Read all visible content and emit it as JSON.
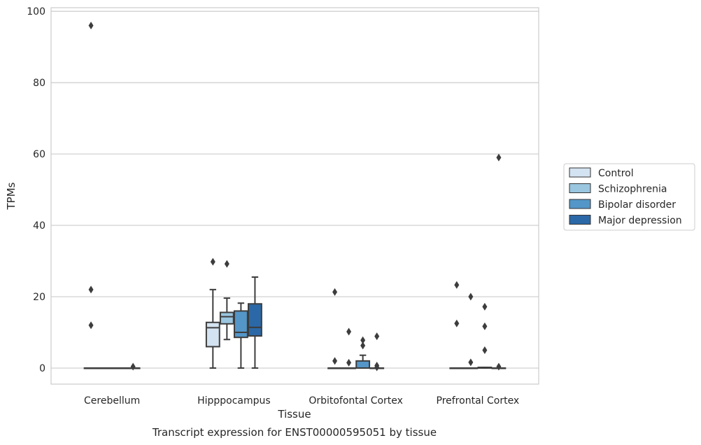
{
  "chart_data": {
    "type": "box",
    "title": "",
    "caption": "Transcript expression for ENST00000595051 by tissue",
    "xlabel": "Tissue",
    "ylabel": "TPMs",
    "ylim": [
      -4.5,
      101
    ],
    "yticks": [
      0,
      20,
      40,
      60,
      80,
      100
    ],
    "grid": "horizontal",
    "legend_position": "right",
    "categories": [
      "Cerebellum",
      "Hipppocampus",
      "Orbitofontal Cortex",
      "Prefrontal Cortex"
    ],
    "series": [
      {
        "name": "Control",
        "color": "#d4e3f1",
        "boxes": [
          {
            "whislo": 0,
            "q1": 0,
            "med": 0,
            "q3": 0,
            "whishi": 0,
            "fliers": [
              96,
              22,
              12
            ]
          },
          {
            "whislo": 0,
            "q1": 6,
            "med": 11.3,
            "q3": 12.8,
            "whishi": 22,
            "fliers": [
              29.8
            ]
          },
          {
            "whislo": 0,
            "q1": 0,
            "med": 0,
            "q3": 0,
            "whishi": 0,
            "fliers": [
              21.3,
              2
            ]
          },
          {
            "whislo": 0,
            "q1": 0,
            "med": 0,
            "q3": 0,
            "whishi": 0,
            "fliers": [
              23.3,
              12.5
            ]
          }
        ]
      },
      {
        "name": "Schizophrenia",
        "color": "#9ac6df",
        "boxes": [
          {
            "whislo": 0,
            "q1": 0,
            "med": 0,
            "q3": 0,
            "whishi": 0,
            "fliers": []
          },
          {
            "whislo": 8,
            "q1": 12.4,
            "med": 14.4,
            "q3": 15.6,
            "whishi": 19.6,
            "fliers": [
              29.2
            ]
          },
          {
            "whislo": 0,
            "q1": 0,
            "med": 0,
            "q3": 0,
            "whishi": 0,
            "fliers": [
              10.2,
              1.5
            ]
          },
          {
            "whislo": 0,
            "q1": 0,
            "med": 0,
            "q3": 0,
            "whishi": 0,
            "fliers": [
              20,
              1.6
            ]
          }
        ]
      },
      {
        "name": "Bipolar disorder",
        "color": "#5496c8",
        "boxes": [
          {
            "whislo": 0,
            "q1": 0,
            "med": 0,
            "q3": 0,
            "whishi": 0,
            "fliers": []
          },
          {
            "whislo": 0,
            "q1": 8.6,
            "med": 10,
            "q3": 16,
            "whishi": 18.2,
            "fliers": []
          },
          {
            "whislo": 0,
            "q1": 0,
            "med": 0,
            "q3": 2,
            "whishi": 3.6,
            "fliers": [
              7.8,
              6.3
            ]
          },
          {
            "whislo": 0,
            "q1": 0,
            "med": 0,
            "q3": 0.2,
            "whishi": 0.2,
            "fliers": [
              17.2,
              11.7,
              5
            ]
          }
        ]
      },
      {
        "name": "Major depression",
        "color": "#2b68a7",
        "boxes": [
          {
            "whislo": 0,
            "q1": 0,
            "med": 0,
            "q3": 0,
            "whishi": 0,
            "fliers": [
              0.4
            ]
          },
          {
            "whislo": 0,
            "q1": 9,
            "med": 11.4,
            "q3": 18,
            "whishi": 25.5,
            "fliers": []
          },
          {
            "whislo": 0,
            "q1": 0,
            "med": 0,
            "q3": 0,
            "whishi": 0,
            "fliers": [
              8.9,
              0.7,
              0.2
            ]
          },
          {
            "whislo": 0,
            "q1": 0,
            "med": 0,
            "q3": 0,
            "whishi": 0,
            "fliers": [
              59,
              0.4
            ]
          }
        ]
      }
    ]
  }
}
